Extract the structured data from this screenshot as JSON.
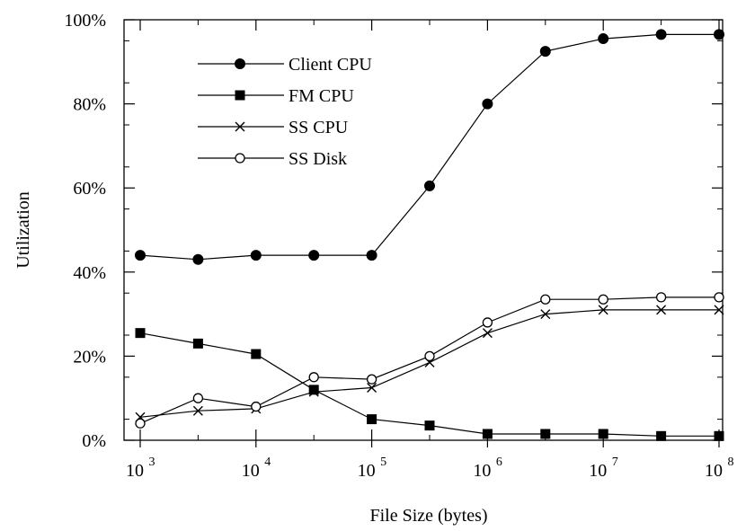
{
  "chart_data": {
    "type": "line",
    "xlabel": "File Size (bytes)",
    "ylabel": "Utilization",
    "x_scale": "log",
    "xlim": [
      1000,
      100000000
    ],
    "ylim": [
      0,
      100
    ],
    "x_tick_base": "10",
    "x_ticks": [
      {
        "value": 1000,
        "exponent": "3"
      },
      {
        "value": 10000,
        "exponent": "4"
      },
      {
        "value": 100000,
        "exponent": "5"
      },
      {
        "value": 1000000,
        "exponent": "6"
      },
      {
        "value": 10000000,
        "exponent": "7"
      },
      {
        "value": 100000000,
        "exponent": "8"
      }
    ],
    "y_ticks": [
      {
        "value": 0,
        "label": "0%"
      },
      {
        "value": 20,
        "label": "20%"
      },
      {
        "value": 40,
        "label": "40%"
      },
      {
        "value": 60,
        "label": "60%"
      },
      {
        "value": 80,
        "label": "80%"
      },
      {
        "value": 100,
        "label": "100%"
      }
    ],
    "grid": false,
    "legend_position": "top-left",
    "x": [
      1000,
      3162,
      10000,
      31623,
      100000,
      316228,
      1000000,
      3162278,
      10000000,
      31622777,
      100000000
    ],
    "series": [
      {
        "name": "Client CPU",
        "marker": "filled-circle",
        "values": [
          44,
          43,
          44,
          44,
          44,
          60.5,
          80,
          92.5,
          95.5,
          96.5,
          96.5
        ]
      },
      {
        "name": "FM CPU",
        "marker": "filled-square",
        "values": [
          25.5,
          23,
          20.5,
          12,
          5,
          3.5,
          1.5,
          1.5,
          1.5,
          1,
          1
        ]
      },
      {
        "name": "SS CPU",
        "marker": "cross",
        "values": [
          5.5,
          7,
          7.5,
          11.5,
          12.5,
          18.5,
          25.5,
          30,
          31,
          31,
          31
        ]
      },
      {
        "name": "SS Disk",
        "marker": "open-circle",
        "values": [
          4,
          10,
          8,
          15,
          14.5,
          20,
          28,
          33.5,
          33.5,
          34,
          34
        ]
      }
    ]
  }
}
